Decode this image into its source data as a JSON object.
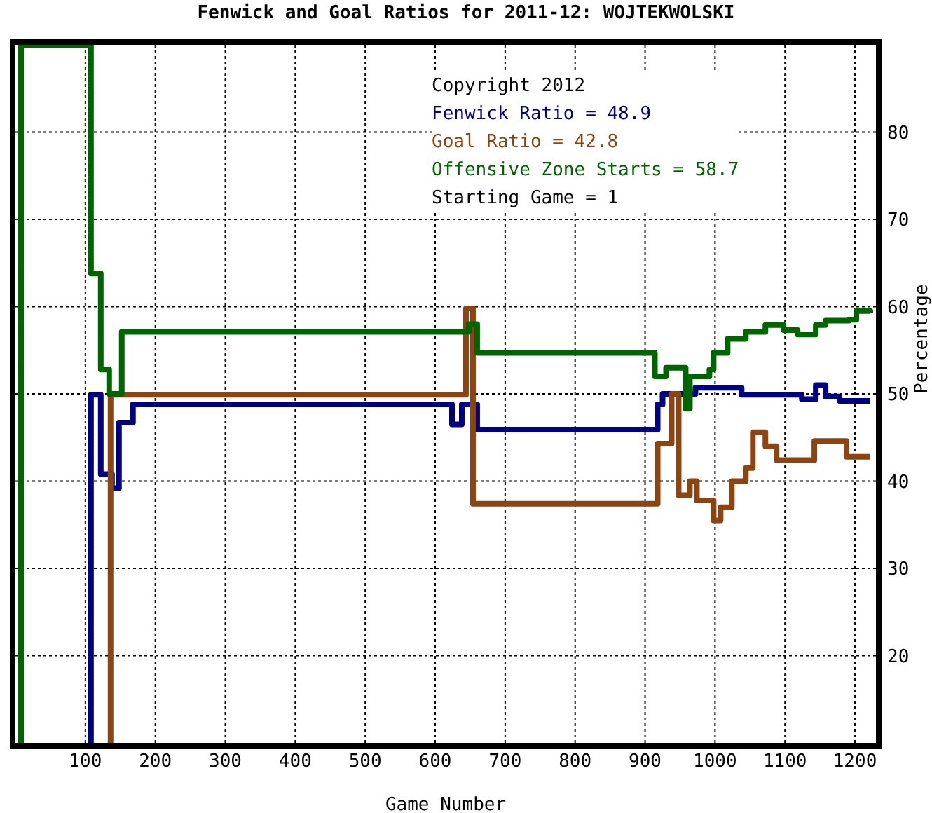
{
  "chart_data": {
    "type": "step",
    "title": "Fenwick and Goal Ratios for 2011-12: WOJTEKWOLSKI",
    "xlabel": "Game Number",
    "ylabel": "Percentage",
    "annotations": [
      "Copyright 2012",
      "Starting Game = 1"
    ],
    "xlim": [
      0,
      1230
    ],
    "xticks": [
      100,
      200,
      300,
      400,
      500,
      600,
      700,
      800,
      900,
      1000,
      1100,
      1200
    ],
    "ylim": [
      10,
      90
    ],
    "yticks": [
      20,
      30,
      40,
      50,
      60,
      70,
      80
    ],
    "grid": true,
    "legend": "top right",
    "marker": "none",
    "line_style": "solid",
    "series": [
      {
        "name": "Fenwick Ratio = 48.9",
        "color": "#000080",
        "x": [
          108,
          108,
          122,
          138,
          148,
          168,
          624,
          638,
          648,
          660,
          918,
          925,
          972,
          1038,
          1124,
          1144,
          1158,
          1178,
          1222
        ],
        "values": [
          10,
          49.9,
          40.8,
          39.2,
          46.7,
          48.8,
          46.5,
          48.8,
          48.8,
          45.9,
          48.8,
          50,
          50.7,
          49.9,
          49.4,
          51,
          49.7,
          49.2,
          49.2
        ]
      },
      {
        "name": "Goal Ratio = 42.8",
        "color": "#8b4513",
        "x": [
          136,
          136,
          644,
          654,
          918,
          938,
          948,
          964,
          974,
          998,
          1008,
          1024,
          1044,
          1054,
          1072,
          1088,
          1142,
          1188,
          1222
        ],
        "values": [
          10,
          49.9,
          59.8,
          37.4,
          44.3,
          50,
          38.4,
          40,
          37.8,
          35.5,
          37,
          40,
          41.5,
          45.6,
          44,
          42.4,
          44.6,
          42.8,
          42.8
        ]
      },
      {
        "name": "Offensive Zone Starts = 58.7",
        "color": "#006400",
        "x": [
          8,
          8,
          108,
          122,
          134,
          152,
          648,
          660,
          914,
          930,
          958,
          964,
          992,
          998,
          1018,
          1044,
          1072,
          1098,
          1118,
          1144,
          1158,
          1192,
          1202,
          1222
        ],
        "values": [
          10,
          90,
          63.8,
          52.8,
          50,
          57.1,
          58,
          54.7,
          52,
          53,
          48.3,
          52,
          52.8,
          54.7,
          56.3,
          57.1,
          57.9,
          57.3,
          56.8,
          57.9,
          58.4,
          58.5,
          59.5,
          59.3
        ]
      }
    ]
  }
}
